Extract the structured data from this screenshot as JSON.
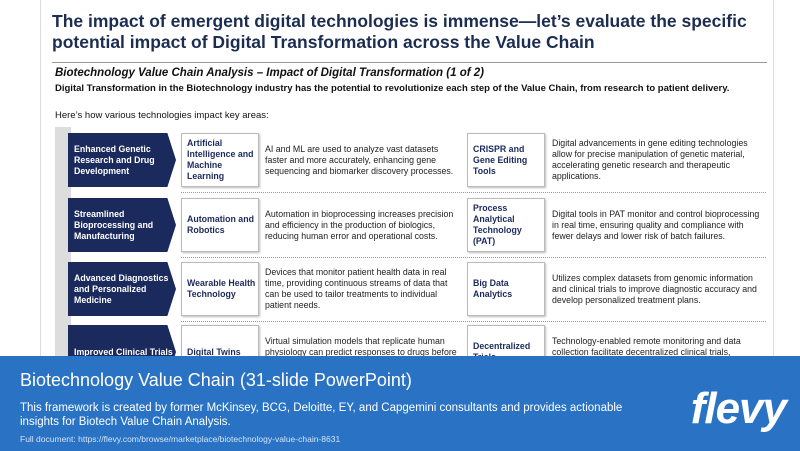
{
  "slide": {
    "title": "The impact of emergent digital technologies is immense—let’s evaluate the specific potential impact of Digital Transformation across the Value Chain",
    "subtitle": "Biotechnology Value Chain Analysis – Impact of Digital Transformation (1 of 2)",
    "intro": "Digital Transformation in the Biotechnology industry has the potential to revolutionize each step of the Value Chain, from research to patient delivery.",
    "lead": "Here’s how various technologies impact key areas:",
    "rows": [
      {
        "stage": "Enhanced Genetic Research and Drug Development",
        "tech1": "Artificial Intelligence and Machine Learning",
        "desc1": "AI and ML are used to analyze vast datasets faster and more accurately, enhancing gene sequencing and biomarker discovery processes.",
        "tech2": "CRISPR and Gene Editing Tools",
        "desc2": "Digital advancements in gene editing technologies allow for precise manipulation of genetic material, accelerating genetic research and therapeutic applications."
      },
      {
        "stage": "Streamlined Bioprocessing and Manufacturing",
        "tech1": "Automation and Robotics",
        "desc1": "Automation in bioprocessing increases precision and efficiency in the production of biologics, reducing human error and operational costs.",
        "tech2": "Process Analytical Technology (PAT)",
        "desc2": "Digital tools in PAT monitor and control bioprocessing in real time, ensuring quality and compliance with fewer delays and lower risk of batch failures."
      },
      {
        "stage": "Advanced Diagnostics and Personalized Medicine",
        "tech1": "Wearable Health Technology",
        "desc1": "Devices that monitor patient health data in real time, providing continuous streams of data that can be used to tailor treatments to individual patient needs.",
        "tech2": "Big Data Analytics",
        "desc2": "Utilizes complex datasets from genomic information and clinical trials to improve diagnostic accuracy and develop personalized treatment plans."
      },
      {
        "stage": "Improved Clinical Trials",
        "tech1": "Digital Twins",
        "desc1": "Virtual simulation models that replicate human physiology can predict responses to drugs before physical trials begin, reducing the",
        "tech2": "Decentralized Trials",
        "desc2": "Technology-enabled remote monitoring and data collection facilitate decentralized clinical trials, increasing participant diversity and reducing"
      }
    ]
  },
  "banner": {
    "title": "Biotechnology Value Chain",
    "title_suffix": "(31-slide PowerPoint)",
    "description": "This framework is created by former McKinsey, BCG, Deloitte, EY, and Capgemini consultants and provides actionable insights for Biotech Value Chain Analysis.",
    "link": "Full document: https://flevy.com/browse/marketplace/biotechnology-value-chain-8631",
    "logo": "flevy"
  }
}
